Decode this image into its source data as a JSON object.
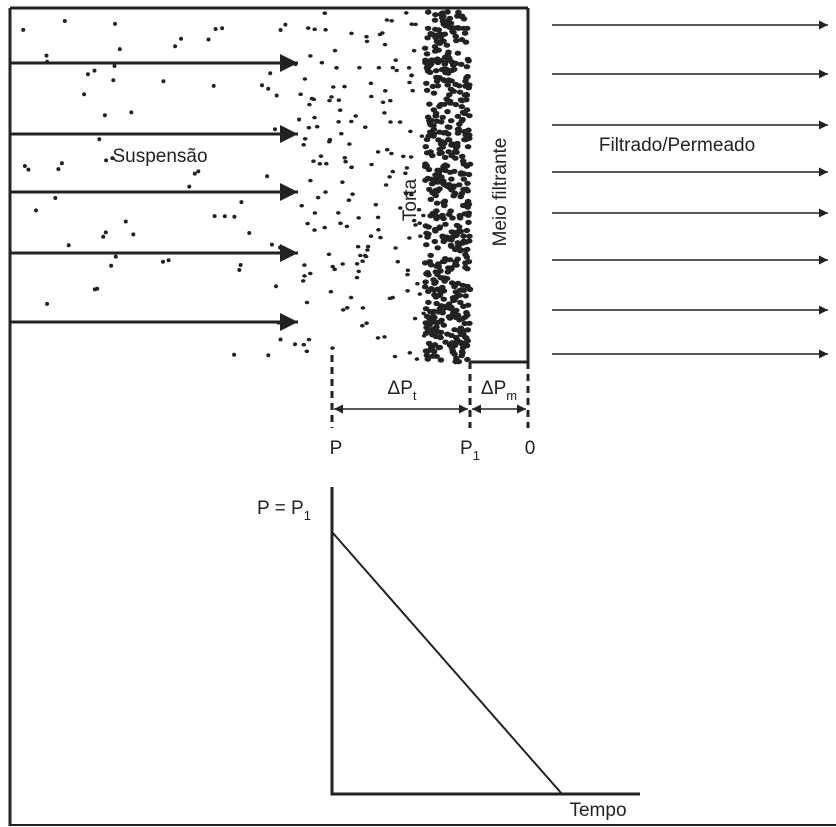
{
  "labels": {
    "suspension": "Suspensão",
    "cake": "Torta",
    "medium": "Meio filtrante",
    "filtrate": "Filtrado/Permeado"
  },
  "pressure_drops": {
    "cake": {
      "main": "ΔP",
      "sub": "t"
    },
    "medium": {
      "main": "ΔP",
      "sub": "m"
    }
  },
  "positions": {
    "start": "P",
    "interface": {
      "main": "P",
      "sub": "1"
    },
    "end": "0"
  },
  "graph": {
    "y_label": {
      "main": "P = P",
      "sub": "1"
    },
    "x_label": "Tempo"
  }
}
